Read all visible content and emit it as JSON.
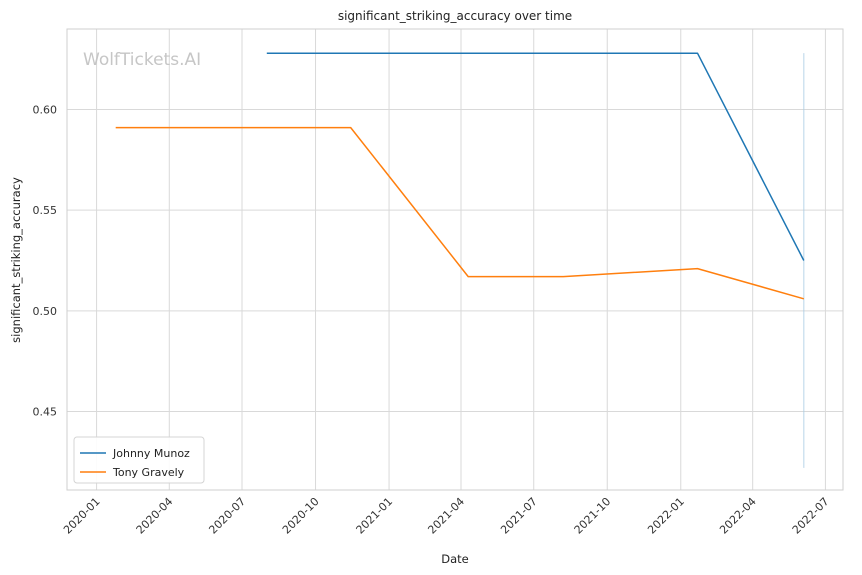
{
  "chart_data": {
    "type": "line",
    "title": "significant_striking_accuracy over time",
    "xlabel": "Date",
    "ylabel": "significant_striking_accuracy",
    "watermark": "WolfTickets.AI",
    "x_ticks": [
      "2020-01",
      "2020-04",
      "2020-07",
      "2020-10",
      "2021-01",
      "2021-04",
      "2021-07",
      "2021-10",
      "2022-01",
      "2022-04",
      "2022-07"
    ],
    "y_ticks": [
      "0.45",
      "0.50",
      "0.55",
      "0.60"
    ],
    "xlim": [
      "2019-11-25",
      "2022-07-23"
    ],
    "ylim": [
      0.411,
      0.64
    ],
    "grid": true,
    "legend_position": "lower-left",
    "series": [
      {
        "name": "Johnny Munoz",
        "color": "#1f77b4",
        "points": [
          {
            "x": "2020-08-01",
            "y": 0.628
          },
          {
            "x": "2022-01-22",
            "y": 0.628
          },
          {
            "x": "2022-06-04",
            "y": 0.525
          }
        ]
      },
      {
        "name": "Tony Gravely",
        "color": "#ff7f0e",
        "points": [
          {
            "x": "2020-01-25",
            "y": 0.591
          },
          {
            "x": "2020-11-14",
            "y": 0.591
          },
          {
            "x": "2021-04-10",
            "y": 0.517
          },
          {
            "x": "2021-08-07",
            "y": 0.517
          },
          {
            "x": "2022-01-22",
            "y": 0.521
          },
          {
            "x": "2022-06-04",
            "y": 0.506
          }
        ]
      }
    ],
    "band": {
      "x": "2022-06-04",
      "y_low": 0.422,
      "y_high": 0.628,
      "color": "#a6cbe3"
    }
  }
}
